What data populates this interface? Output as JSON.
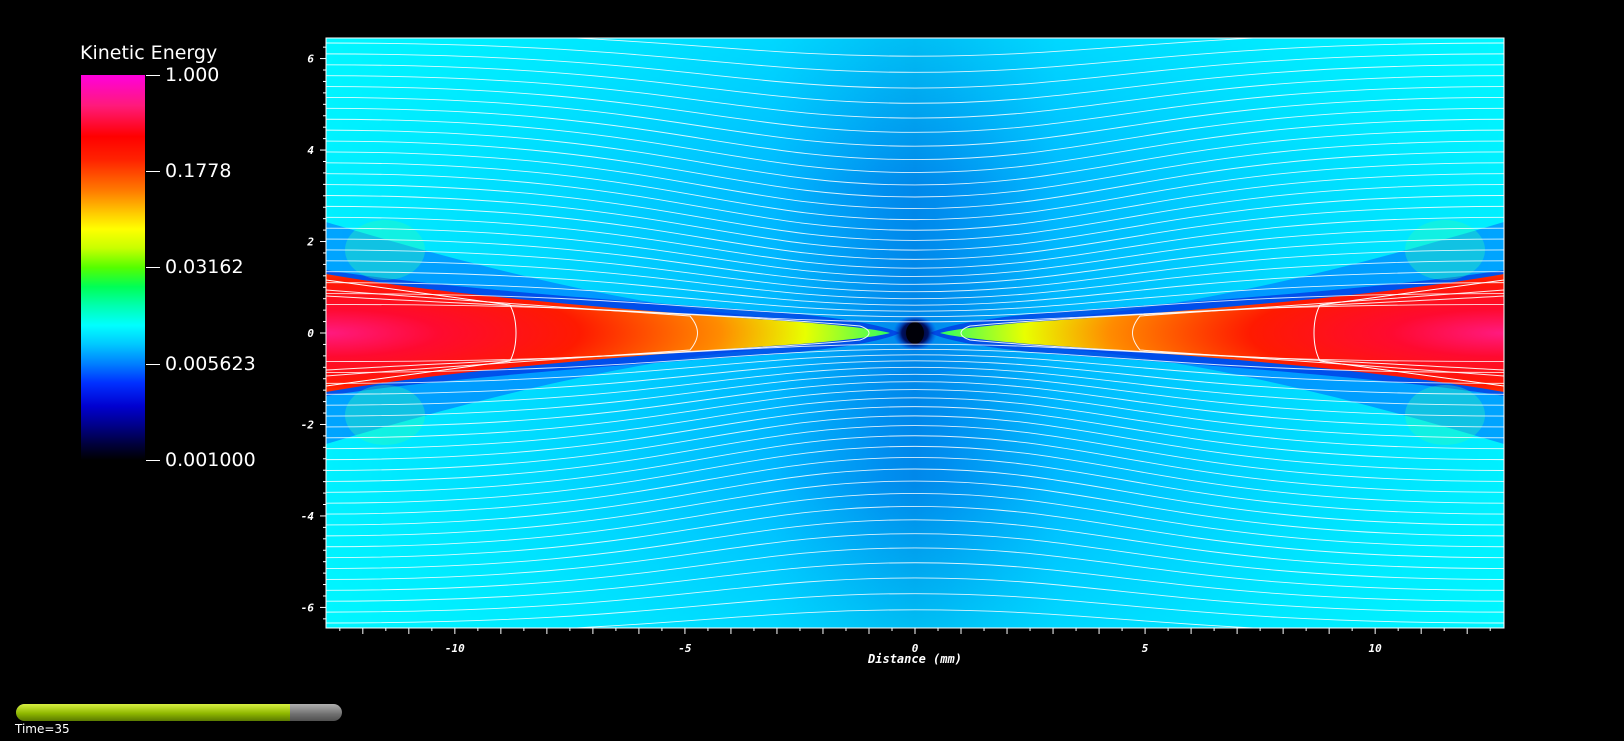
{
  "colorbar": {
    "title": "Kinetic Energy",
    "labels": [
      "1.000",
      "0.1778",
      "0.03162",
      "0.005623",
      "0.001000"
    ],
    "scale": "log",
    "colors": [
      "#ff00dd",
      "#ff0000",
      "#ffff00",
      "#00ff00",
      "#00ffff",
      "#0000ff",
      "#000000"
    ]
  },
  "chart_data": {
    "type": "heatmap",
    "title": "",
    "xlabel": "Distance (mm)",
    "ylabel": "",
    "xlim": [
      -12.8,
      12.8
    ],
    "ylim": [
      -6.45,
      6.45
    ],
    "x_ticks": [
      -10,
      -5,
      0,
      5,
      10
    ],
    "y_ticks": [
      6,
      4,
      2,
      0,
      -2,
      -4,
      -6
    ],
    "x_tick_labels": [
      "-10",
      "-5",
      "0",
      "5",
      "10"
    ],
    "y_tick_labels": [
      "6",
      "4",
      "2",
      "0",
      "-2",
      "-4",
      "-6"
    ],
    "value_range": [
      0.001,
      1.0
    ],
    "streamlines": "white",
    "grid": false
  },
  "time": {
    "label": "Time=35",
    "progress": 0.84
  }
}
